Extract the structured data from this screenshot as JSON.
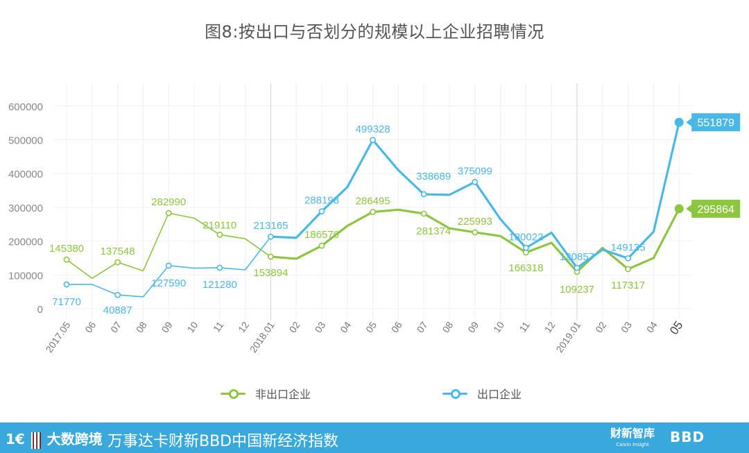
{
  "title": "图8:按出口与否划分的规模以上企业招聘情况",
  "chart_data": {
    "type": "line",
    "title": "图8:按出口与否划分的规模以上企业招聘情况",
    "categories": [
      "2017.05",
      "06",
      "07",
      "08",
      "09",
      "10",
      "11",
      "12",
      "2018.01",
      "02",
      "03",
      "04",
      "05",
      "06",
      "07",
      "08",
      "09",
      "10",
      "11",
      "12",
      "2019.01",
      "02",
      "03",
      "04",
      "05"
    ],
    "ylim": [
      0,
      600000
    ],
    "yticks": [
      "0",
      "100000",
      "200000",
      "300000",
      "400000",
      "500000",
      "600000"
    ],
    "series": [
      {
        "name": "非出口企业",
        "color": "#8cc63f",
        "values": [
          145380,
          90000,
          137548,
          112000,
          282990,
          268000,
          219110,
          207000,
          153894,
          148000,
          186576,
          245000,
          286495,
          293000,
          281374,
          238000,
          225993,
          215000,
          166318,
          195000,
          109237,
          180000,
          117317,
          150000,
          295864
        ],
        "labels": [
          {
            "i": 0,
            "text": "145380"
          },
          {
            "i": 2,
            "text": "137548"
          },
          {
            "i": 4,
            "text": "282990"
          },
          {
            "i": 6,
            "text": "219110"
          },
          {
            "i": 8,
            "text": "153894"
          },
          {
            "i": 10,
            "text": "186576"
          },
          {
            "i": 12,
            "text": "286495"
          },
          {
            "i": 14,
            "text": "281374"
          },
          {
            "i": 16,
            "text": "225993"
          },
          {
            "i": 18,
            "text": "166318"
          },
          {
            "i": 20,
            "text": "109237"
          },
          {
            "i": 22,
            "text": "117317"
          }
        ],
        "end_label": "295864"
      },
      {
        "name": "出口企业",
        "color": "#4ab8e6",
        "values": [
          71770,
          72000,
          40887,
          35000,
          127590,
          120000,
          121280,
          115000,
          213165,
          210000,
          288198,
          360000,
          499328,
          410000,
          338689,
          337000,
          375099,
          265000,
          180022,
          225000,
          120857,
          175000,
          149135,
          228000,
          551879
        ],
        "labels": [
          {
            "i": 0,
            "text": "71770"
          },
          {
            "i": 2,
            "text": "40887"
          },
          {
            "i": 4,
            "text": "127590"
          },
          {
            "i": 6,
            "text": "121280"
          },
          {
            "i": 8,
            "text": "213165"
          },
          {
            "i": 10,
            "text": "288198"
          },
          {
            "i": 12,
            "text": "499328"
          },
          {
            "i": 14,
            "text": "338689"
          },
          {
            "i": 16,
            "text": "375099"
          },
          {
            "i": 18,
            "text": "180022"
          },
          {
            "i": 20,
            "text": "120857"
          },
          {
            "i": 22,
            "text": "149135"
          }
        ],
        "end_label": "551879"
      }
    ],
    "legend_position": "bottom",
    "grid": true
  },
  "legend": {
    "items": [
      {
        "label": "非出口企业",
        "color": "#8cc63f"
      },
      {
        "label": "出口企业",
        "color": "#4ab8e6"
      }
    ]
  },
  "footer": {
    "logo1_a": "1€",
    "logo1_b": "大数跨境",
    "name": "万事达卡财新BBD中国新经济指数",
    "logo2": "财新智库",
    "logo2_sub": "Caixin Insight",
    "logo3": "BBD"
  }
}
